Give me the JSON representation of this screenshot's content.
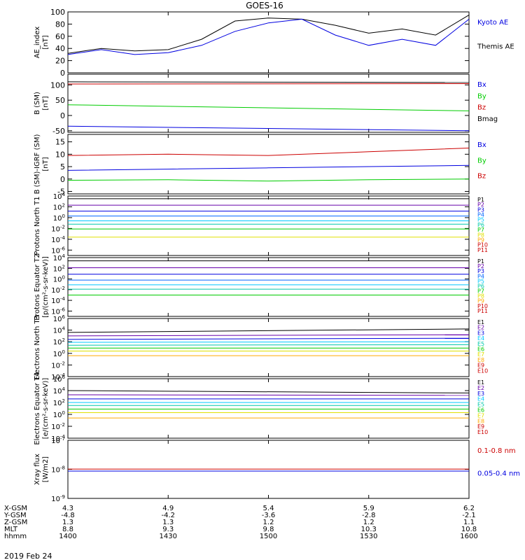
{
  "title": "GOES-16",
  "date": "2019 Feb 24",
  "colors": {
    "black": "#000000",
    "blue": "#0000e0",
    "green": "#00cc00",
    "red": "#cc0000",
    "cyan": "#00c8ff",
    "orange": "#ffaa00",
    "yellow": "#e0e000",
    "magenta": "#cc00cc",
    "purple": "#6600aa"
  },
  "footer": {
    "rows": [
      {
        "label": "X-GSM",
        "values": [
          "4.3",
          "4.9",
          "5.4",
          "5.9",
          "6.2"
        ]
      },
      {
        "label": "Y-GSM",
        "values": [
          "-4.8",
          "-4.2",
          "-3.6",
          "-2.8",
          "-2.1"
        ]
      },
      {
        "label": "Z-GSM",
        "values": [
          "1.3",
          "1.3",
          "1.2",
          "1.2",
          "1.1"
        ]
      },
      {
        "label": "MLT",
        "values": [
          "8.8",
          "9.3",
          "9.8",
          "10.3",
          "10.8"
        ]
      },
      {
        "label": "hhmm",
        "values": [
          "1400",
          "1430",
          "1500",
          "1530",
          "1600"
        ]
      }
    ]
  },
  "chart_data": [
    {
      "type": "line",
      "id": "ae",
      "ylabel": "AE_index [nT]",
      "ylim": [
        0,
        100
      ],
      "yticks": [
        "0",
        "20",
        "40",
        "60",
        "80",
        "100"
      ],
      "legend": [
        {
          "name": "Kyoto AE",
          "color": "#0000e0"
        },
        {
          "name": "Themis AE",
          "color": "#000000"
        }
      ],
      "x": [
        1400,
        1410,
        1420,
        1430,
        1440,
        1450,
        1500,
        1510,
        1520,
        1530,
        1540,
        1550,
        1600
      ],
      "series": [
        {
          "name": "Themis AE",
          "color": "#000000",
          "values": [
            32,
            40,
            36,
            38,
            55,
            85,
            90,
            88,
            78,
            65,
            72,
            62,
            95
          ]
        },
        {
          "name": "Kyoto AE",
          "color": "#0000e0",
          "values": [
            30,
            38,
            30,
            33,
            45,
            68,
            82,
            88,
            62,
            45,
            55,
            45,
            88
          ]
        }
      ]
    },
    {
      "type": "line",
      "id": "bsm",
      "ylabel": "B (SM) [nT]",
      "ylim": [
        -55,
        135
      ],
      "yticks": [
        "-50",
        "0",
        "50",
        "100"
      ],
      "legend": [
        {
          "name": "Bx",
          "color": "#0000e0"
        },
        {
          "name": "By",
          "color": "#00cc00"
        },
        {
          "name": "Bz",
          "color": "#cc0000"
        },
        {
          "name": "Bmag",
          "color": "#000000"
        }
      ],
      "x": [
        1400,
        1600
      ],
      "series": [
        {
          "name": "Bmag",
          "color": "#000000",
          "values": [
            110,
            108
          ]
        },
        {
          "name": "Bz",
          "color": "#cc0000",
          "values": [
            103,
            104
          ]
        },
        {
          "name": "By",
          "color": "#00cc00",
          "values": [
            35,
            15
          ]
        },
        {
          "name": "Bx",
          "color": "#0000e0",
          "values": [
            -35,
            -50
          ]
        }
      ]
    },
    {
      "type": "line",
      "id": "bigrf",
      "ylabel": "B (SM)-IGRF (SM) [nT]",
      "ylim": [
        -6,
        18
      ],
      "yticks": [
        "-5",
        "0",
        "5",
        "10",
        "15"
      ],
      "legend": [
        {
          "name": "Bx",
          "color": "#0000e0"
        },
        {
          "name": "By",
          "color": "#00cc00"
        },
        {
          "name": "Bz",
          "color": "#cc0000"
        }
      ],
      "x": [
        1400,
        1430,
        1500,
        1530,
        1600
      ],
      "series": [
        {
          "name": "Bz",
          "color": "#cc0000",
          "values": [
            9.5,
            10,
            9.5,
            11,
            12.5
          ]
        },
        {
          "name": "Bx",
          "color": "#0000e0",
          "values": [
            3.5,
            4,
            4.5,
            5,
            5.5
          ]
        },
        {
          "name": "By",
          "color": "#00cc00",
          "values": [
            -0.5,
            -0.3,
            -0.8,
            -0.3,
            0
          ]
        }
      ]
    },
    {
      "type": "line",
      "id": "pn",
      "log": true,
      "ylabel": "Protons North T1",
      "ylim": [
        -7,
        4
      ],
      "yticks": [
        {
          "b": "10",
          "e": "4",
          "v": 4
        },
        {
          "b": "10",
          "e": "2",
          "v": 2
        },
        {
          "b": "10",
          "e": "0",
          "v": 0
        },
        {
          "b": "10",
          "e": "-2",
          "v": -2
        },
        {
          "b": "10",
          "e": "-4",
          "v": -4
        },
        {
          "b": "10",
          "e": "-6",
          "v": -6
        }
      ],
      "legend": [
        {
          "name": "P1",
          "color": "#000000"
        },
        {
          "name": "P2",
          "color": "#6600aa"
        },
        {
          "name": "P3",
          "color": "#0000e0"
        },
        {
          "name": "P4",
          "color": "#0066ff"
        },
        {
          "name": "P5",
          "color": "#00c8ff"
        },
        {
          "name": "P6",
          "color": "#00c8aa"
        },
        {
          "name": "P7",
          "color": "#00cc00"
        },
        {
          "name": "P8",
          "color": "#e0e000"
        },
        {
          "name": "P9",
          "color": "#ffaa00"
        },
        {
          "name": "P10",
          "color": "#cc0000"
        },
        {
          "name": "P11",
          "color": "#cc0000"
        }
      ],
      "x": [
        1400,
        1600
      ],
      "series": [
        {
          "name": "P1",
          "color": "#000000",
          "values": [
            3.5,
            3.5
          ]
        },
        {
          "name": "P2",
          "color": "#6600aa",
          "values": [
            2.3,
            2.3
          ]
        },
        {
          "name": "P3",
          "color": "#0000e0",
          "values": [
            1.2,
            1.2
          ]
        },
        {
          "name": "P4",
          "color": "#0066ff",
          "values": [
            0.3,
            0.3
          ]
        },
        {
          "name": "P5",
          "color": "#00c8ff",
          "values": [
            -0.6,
            -0.6
          ]
        },
        {
          "name": "P6",
          "color": "#00c8aa",
          "values": [
            -1.2,
            -1.2
          ]
        },
        {
          "name": "P7",
          "color": "#00cc00",
          "values": [
            -2.1,
            -2.1
          ]
        },
        {
          "name": "P8",
          "color": "#e0e000",
          "values": [
            -3.6,
            -3.6
          ]
        }
      ]
    },
    {
      "type": "line",
      "id": "pe",
      "log": true,
      "ylabel": "Protons Equator T2 [p/(cm²-s-sr-keV)]",
      "ylim": [
        -7,
        4
      ],
      "yticks": [
        {
          "b": "10",
          "e": "4",
          "v": 4
        },
        {
          "b": "10",
          "e": "2",
          "v": 2
        },
        {
          "b": "10",
          "e": "0",
          "v": 0
        },
        {
          "b": "10",
          "e": "-2",
          "v": -2
        },
        {
          "b": "10",
          "e": "-4",
          "v": -4
        },
        {
          "b": "10",
          "e": "-6",
          "v": -6
        }
      ],
      "legend": [
        {
          "name": "P1",
          "color": "#000000"
        },
        {
          "name": "P2",
          "color": "#6600aa"
        },
        {
          "name": "P3",
          "color": "#0000e0"
        },
        {
          "name": "P4",
          "color": "#0066ff"
        },
        {
          "name": "P5",
          "color": "#00c8ff"
        },
        {
          "name": "P6",
          "color": "#00c8aa"
        },
        {
          "name": "P7",
          "color": "#00cc00"
        },
        {
          "name": "P8",
          "color": "#e0e000"
        },
        {
          "name": "P9",
          "color": "#ffaa00"
        },
        {
          "name": "P10",
          "color": "#cc0000"
        },
        {
          "name": "P11",
          "color": "#cc0000"
        }
      ],
      "x": [
        1400,
        1600
      ],
      "series": [
        {
          "name": "P1",
          "color": "#000000",
          "values": [
            3.4,
            3.4
          ]
        },
        {
          "name": "P2",
          "color": "#6600aa",
          "values": [
            2.1,
            2.1
          ]
        },
        {
          "name": "P3",
          "color": "#0000e0",
          "values": [
            0.9,
            0.9
          ]
        },
        {
          "name": "P4",
          "color": "#0066ff",
          "values": [
            -0.2,
            -0.2
          ]
        },
        {
          "name": "P5",
          "color": "#00c8ff",
          "values": [
            -1.1,
            -1.1
          ]
        },
        {
          "name": "P6",
          "color": "#00c8aa",
          "values": [
            -1.9,
            -1.9
          ]
        },
        {
          "name": "P7",
          "color": "#00cc00",
          "values": [
            -3.0,
            -3.0
          ]
        }
      ]
    },
    {
      "type": "line",
      "id": "en",
      "log": true,
      "ylabel": "Electrons North T3",
      "ylim": [
        -4,
        6
      ],
      "yticks": [
        {
          "b": "10",
          "e": "6",
          "v": 6
        },
        {
          "b": "10",
          "e": "4",
          "v": 4
        },
        {
          "b": "10",
          "e": "2",
          "v": 2
        },
        {
          "b": "10",
          "e": "0",
          "v": 0
        },
        {
          "b": "10",
          "e": "-2",
          "v": -2
        },
        {
          "b": "10",
          "e": "-4",
          "v": -4
        }
      ],
      "legend": [
        {
          "name": "E1",
          "color": "#000000"
        },
        {
          "name": "E2",
          "color": "#6600aa"
        },
        {
          "name": "E3",
          "color": "#0000e0"
        },
        {
          "name": "E4",
          "color": "#00c8ff"
        },
        {
          "name": "E5",
          "color": "#00c8aa"
        },
        {
          "name": "E6",
          "color": "#00cc00"
        },
        {
          "name": "E7",
          "color": "#e0e000"
        },
        {
          "name": "E8",
          "color": "#ffaa00"
        },
        {
          "name": "E9",
          "color": "#cc0000"
        },
        {
          "name": "E10",
          "color": "#cc0000"
        }
      ],
      "x": [
        1400,
        1600
      ],
      "series": [
        {
          "name": "E1",
          "color": "#000000",
          "values": [
            3.6,
            4.2
          ]
        },
        {
          "name": "E2",
          "color": "#6600aa",
          "values": [
            3.0,
            3.2
          ]
        },
        {
          "name": "E3",
          "color": "#0000e0",
          "values": [
            2.4,
            2.6
          ]
        },
        {
          "name": "E4",
          "color": "#00c8ff",
          "values": [
            1.9,
            2.0
          ]
        },
        {
          "name": "E5",
          "color": "#00c8aa",
          "values": [
            1.4,
            1.5
          ]
        },
        {
          "name": "E6",
          "color": "#00cc00",
          "values": [
            0.9,
            0.9
          ]
        },
        {
          "name": "E7",
          "color": "#e0e000",
          "values": [
            0.4,
            0.4
          ]
        },
        {
          "name": "E8",
          "color": "#ffaa00",
          "values": [
            -0.4,
            -0.4
          ]
        }
      ]
    },
    {
      "type": "line",
      "id": "ee",
      "log": true,
      "ylabel": "Electrons Equator T4 [e/(cm²-s-sr-keV)]",
      "ylim": [
        -4,
        6
      ],
      "yticks": [
        {
          "b": "10",
          "e": "6",
          "v": 6
        },
        {
          "b": "10",
          "e": "4",
          "v": 4
        },
        {
          "b": "10",
          "e": "2",
          "v": 2
        },
        {
          "b": "10",
          "e": "0",
          "v": 0
        },
        {
          "b": "10",
          "e": "-2",
          "v": -2
        },
        {
          "b": "10",
          "e": "-4",
          "v": -4
        }
      ],
      "legend": [
        {
          "name": "E1",
          "color": "#000000"
        },
        {
          "name": "E2",
          "color": "#6600aa"
        },
        {
          "name": "E3",
          "color": "#0000e0"
        },
        {
          "name": "E4",
          "color": "#00c8ff"
        },
        {
          "name": "E5",
          "color": "#00c8aa"
        },
        {
          "name": "E6",
          "color": "#00cc00"
        },
        {
          "name": "E7",
          "color": "#e0e000"
        },
        {
          "name": "E8",
          "color": "#ffaa00"
        },
        {
          "name": "E9",
          "color": "#cc0000"
        },
        {
          "name": "E10",
          "color": "#cc0000"
        }
      ],
      "x": [
        1400,
        1600
      ],
      "series": [
        {
          "name": "E1",
          "color": "#000000",
          "values": [
            4.0,
            3.6
          ]
        },
        {
          "name": "E2",
          "color": "#6600aa",
          "values": [
            3.3,
            3.2
          ]
        },
        {
          "name": "E3",
          "color": "#0000e0",
          "values": [
            2.6,
            2.6
          ]
        },
        {
          "name": "E4",
          "color": "#00c8ff",
          "values": [
            2.0,
            2.0
          ]
        },
        {
          "name": "E5",
          "color": "#00c8aa",
          "values": [
            1.5,
            1.5
          ]
        },
        {
          "name": "E6",
          "color": "#00cc00",
          "values": [
            0.9,
            0.9
          ]
        },
        {
          "name": "E7",
          "color": "#e0e000",
          "values": [
            0.3,
            0.3
          ]
        },
        {
          "name": "E8",
          "color": "#ffaa00",
          "values": [
            -0.6,
            -0.6
          ]
        }
      ]
    },
    {
      "type": "line",
      "id": "xray",
      "log": true,
      "ylabel": "Xray flux [W/m2]",
      "ylim": [
        -9,
        -7
      ],
      "yticks": [
        {
          "b": "10",
          "e": "-7",
          "v": -7
        },
        {
          "b": "10",
          "e": "-8",
          "v": -8
        },
        {
          "b": "10",
          "e": "-9",
          "v": -9
        }
      ],
      "legend": [
        {
          "name": "0.1-0.8 nm",
          "color": "#cc0000"
        },
        {
          "name": "0.05-0.4 nm",
          "color": "#0000e0"
        }
      ],
      "x": [
        1400,
        1600
      ],
      "series": [
        {
          "name": "0.1-0.8 nm",
          "color": "#cc0000",
          "values": [
            -7.99,
            -7.99
          ]
        },
        {
          "name": "0.05-0.4 nm",
          "color": "#0000e0",
          "values": [
            -8.06,
            -8.06
          ]
        }
      ]
    }
  ]
}
